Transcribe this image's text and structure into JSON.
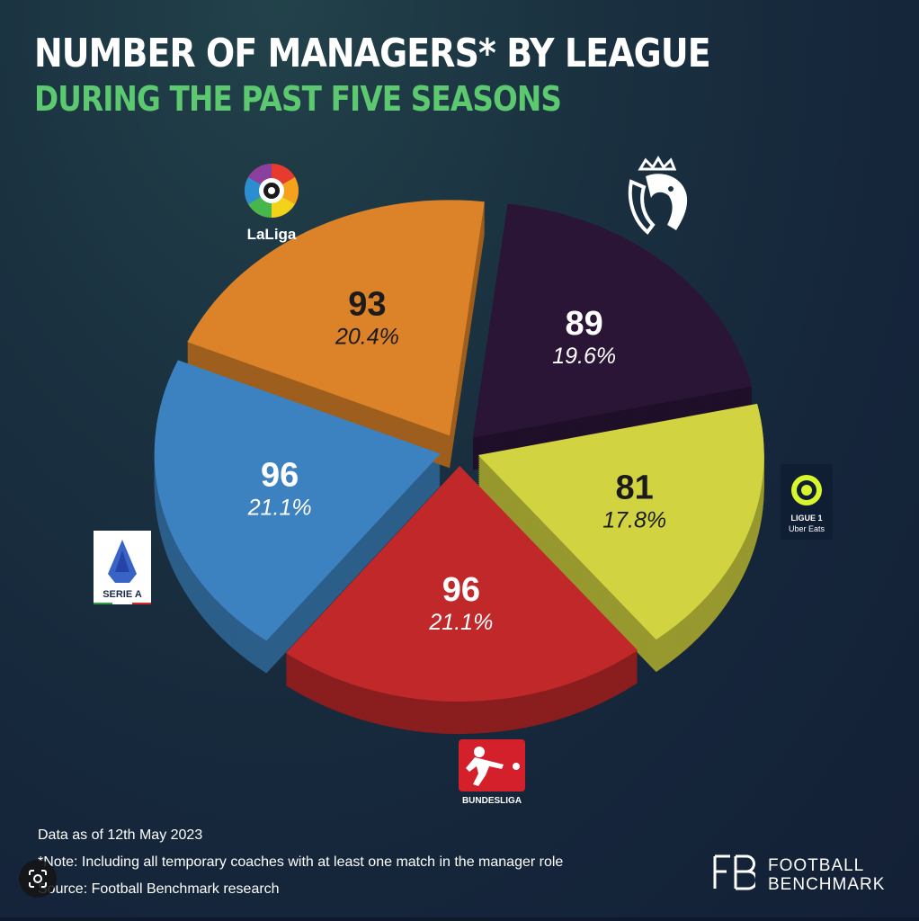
{
  "header": {
    "title": "NUMBER OF MANAGERS* BY LEAGUE",
    "subtitle": "DURING THE PAST FIVE SEASONS"
  },
  "chart_data": {
    "type": "pie",
    "title": "NUMBER OF MANAGERS* BY LEAGUE",
    "subtitle": "DURING THE PAST FIVE SEASONS",
    "slices": [
      {
        "label": "Premier League",
        "value": 89,
        "percent_label": "19.6%",
        "color": "#2b1537"
      },
      {
        "label": "Ligue 1",
        "value": 81,
        "percent_label": "17.8%",
        "color": "#d2d340"
      },
      {
        "label": "Bundesliga",
        "value": 96,
        "percent_label": "21.1%",
        "color": "#c0282a"
      },
      {
        "label": "Serie A",
        "value": 96,
        "percent_label": "21.1%",
        "color": "#3d82c0"
      },
      {
        "label": "LaLiga",
        "value": 93,
        "percent_label": "20.4%",
        "color": "#dc8228"
      }
    ]
  },
  "logos": {
    "laliga": "LaLiga",
    "ligue1_line1": "LIGUE 1",
    "ligue1_line2": "Uber Eats",
    "seriea": "SERIE A",
    "bundesliga": "BUNDESLIGA"
  },
  "footer": {
    "date_note": "Data as of 12th May 2023",
    "note": "*Note: Including all temporary coaches with at least one match in the manager role",
    "source": "Source: Football Benchmark research",
    "brand_line1": "FOOTBALL",
    "brand_line2": "BENCHMARK"
  }
}
